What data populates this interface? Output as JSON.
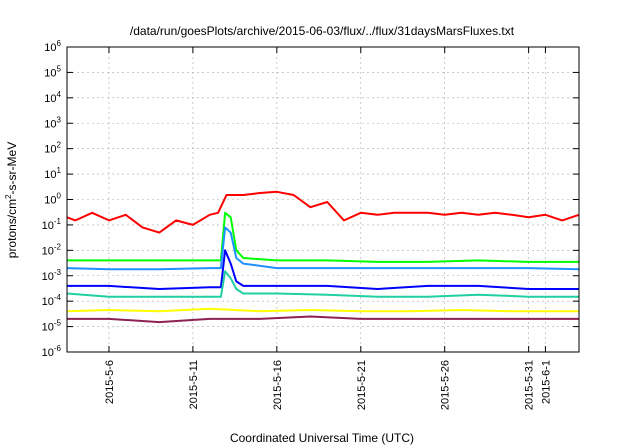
{
  "chart_data": {
    "type": "line",
    "title": "/data/run/goesPlots/archive/2015-06-03/flux/../flux/31daysMarsFluxes.txt",
    "xlabel": "Coordinated Universal Time (UTC)",
    "ylabel_parts": [
      "protons/cm",
      "2",
      "-s-sr-MeV"
    ],
    "y_scale": "log",
    "ylim": [
      1e-06,
      1000000.0
    ],
    "xlim": [
      "2015-05-03T12:00",
      "2015-06-03T00:00"
    ],
    "y_ticks": [
      {
        "base": "10",
        "exp": "-6",
        "value": 1e-06
      },
      {
        "base": "10",
        "exp": "-5",
        "value": 1e-05
      },
      {
        "base": "10",
        "exp": "-4",
        "value": 0.0001
      },
      {
        "base": "10",
        "exp": "-3",
        "value": 0.001
      },
      {
        "base": "10",
        "exp": "-2",
        "value": 0.01
      },
      {
        "base": "10",
        "exp": "-1",
        "value": 0.1
      },
      {
        "base": "10",
        "exp": "0",
        "value": 1
      },
      {
        "base": "10",
        "exp": "1",
        "value": 10
      },
      {
        "base": "10",
        "exp": "2",
        "value": 100
      },
      {
        "base": "10",
        "exp": "3",
        "value": 1000
      },
      {
        "base": "10",
        "exp": "4",
        "value": 10000
      },
      {
        "base": "10",
        "exp": "5",
        "value": 100000
      },
      {
        "base": "10",
        "exp": "6",
        "value": 1000000
      }
    ],
    "x_ticks": [
      {
        "label": "2015-5-6",
        "date": "2015-05-06"
      },
      {
        "label": "2015-5-11",
        "date": "2015-05-11"
      },
      {
        "label": "2015-5-16",
        "date": "2015-05-16"
      },
      {
        "label": "2015-5-21",
        "date": "2015-05-21"
      },
      {
        "label": "2015-5-26",
        "date": "2015-05-26"
      },
      {
        "label": "2015-5-31",
        "date": "2015-05-31"
      },
      {
        "label": "2015-6-1",
        "date": "2015-06-01"
      }
    ],
    "grid": true,
    "legend": "none",
    "series": [
      {
        "color": "#ff0000",
        "x": [
          "2015-05-03T12:00",
          "2015-05-04T00:00",
          "2015-05-05T00:00",
          "2015-05-06T00:00",
          "2015-05-07T00:00",
          "2015-05-08T00:00",
          "2015-05-09T00:00",
          "2015-05-10T00:00",
          "2015-05-11T00:00",
          "2015-05-12T00:00",
          "2015-05-12T12:00",
          "2015-05-13T00:00",
          "2015-05-14T00:00",
          "2015-05-15T00:00",
          "2015-05-16T00:00",
          "2015-05-17T00:00",
          "2015-05-18T00:00",
          "2015-05-19T00:00",
          "2015-05-20T00:00",
          "2015-05-21T00:00",
          "2015-05-22T00:00",
          "2015-05-23T00:00",
          "2015-05-24T00:00",
          "2015-05-25T00:00",
          "2015-05-26T00:00",
          "2015-05-27T00:00",
          "2015-05-28T00:00",
          "2015-05-29T00:00",
          "2015-05-30T00:00",
          "2015-05-31T00:00",
          "2015-06-01T00:00",
          "2015-06-02T00:00",
          "2015-06-03T00:00"
        ],
        "y": [
          0.2,
          0.15,
          0.3,
          0.15,
          0.25,
          0.08,
          0.05,
          0.15,
          0.1,
          0.25,
          0.3,
          1.5,
          1.5,
          1.8,
          2.0,
          1.5,
          0.5,
          0.8,
          0.15,
          0.3,
          0.25,
          0.3,
          0.3,
          0.3,
          0.25,
          0.3,
          0.25,
          0.3,
          0.25,
          0.2,
          0.25,
          0.15,
          0.25
        ]
      },
      {
        "color": "#00ff00",
        "x": [
          "2015-05-03T12:00",
          "2015-05-06T00:00",
          "2015-05-09T00:00",
          "2015-05-12T00:00",
          "2015-05-12T16:00",
          "2015-05-12T22:00",
          "2015-05-13T06:00",
          "2015-05-13T14:00",
          "2015-05-14T00:00",
          "2015-05-16T00:00",
          "2015-05-19T00:00",
          "2015-05-22T00:00",
          "2015-05-25T00:00",
          "2015-05-28T00:00",
          "2015-05-31T00:00",
          "2015-06-03T00:00"
        ],
        "y": [
          0.004,
          0.004,
          0.004,
          0.004,
          0.004,
          0.3,
          0.2,
          0.01,
          0.005,
          0.004,
          0.004,
          0.0035,
          0.0035,
          0.004,
          0.0035,
          0.0035
        ]
      },
      {
        "color": "#1e90ff",
        "x": [
          "2015-05-03T12:00",
          "2015-05-06T00:00",
          "2015-05-09T00:00",
          "2015-05-12T00:00",
          "2015-05-12T16:00",
          "2015-05-12T22:00",
          "2015-05-13T06:00",
          "2015-05-13T14:00",
          "2015-05-14T00:00",
          "2015-05-16T00:00",
          "2015-05-19T00:00",
          "2015-05-22T00:00",
          "2015-05-25T00:00",
          "2015-05-28T00:00",
          "2015-05-31T00:00",
          "2015-06-03T00:00"
        ],
        "y": [
          0.002,
          0.0018,
          0.0018,
          0.002,
          0.002,
          0.08,
          0.05,
          0.005,
          0.003,
          0.002,
          0.002,
          0.002,
          0.002,
          0.002,
          0.002,
          0.0018
        ]
      },
      {
        "color": "#0000ff",
        "x": [
          "2015-05-03T12:00",
          "2015-05-06T00:00",
          "2015-05-09T00:00",
          "2015-05-12T00:00",
          "2015-05-12T16:00",
          "2015-05-12T22:00",
          "2015-05-13T06:00",
          "2015-05-13T14:00",
          "2015-05-14T00:00",
          "2015-05-16T00:00",
          "2015-05-19T00:00",
          "2015-05-22T00:00",
          "2015-05-25T00:00",
          "2015-05-28T00:00",
          "2015-05-31T00:00",
          "2015-06-03T00:00"
        ],
        "y": [
          0.0004,
          0.0004,
          0.0003,
          0.00035,
          0.00035,
          0.01,
          0.003,
          0.0006,
          0.0004,
          0.0004,
          0.0004,
          0.0003,
          0.0004,
          0.0004,
          0.0003,
          0.0003
        ]
      },
      {
        "color": "#20d0a0",
        "x": [
          "2015-05-03T12:00",
          "2015-05-06T00:00",
          "2015-05-09T00:00",
          "2015-05-12T00:00",
          "2015-05-12T16:00",
          "2015-05-12T22:00",
          "2015-05-13T06:00",
          "2015-05-13T14:00",
          "2015-05-14T00:00",
          "2015-05-16T00:00",
          "2015-05-19T00:00",
          "2015-05-22T00:00",
          "2015-05-25T00:00",
          "2015-05-28T00:00",
          "2015-05-31T00:00",
          "2015-06-03T00:00"
        ],
        "y": [
          0.0002,
          0.00015,
          0.00015,
          0.00015,
          0.00015,
          0.0015,
          0.0008,
          0.0003,
          0.0002,
          0.0002,
          0.00018,
          0.00015,
          0.00015,
          0.00018,
          0.00015,
          0.00015
        ]
      },
      {
        "color": "#ffff00",
        "x": [
          "2015-05-03T12:00",
          "2015-05-06T00:00",
          "2015-05-09T00:00",
          "2015-05-12T00:00",
          "2015-05-15T00:00",
          "2015-05-18T00:00",
          "2015-05-21T00:00",
          "2015-05-24T00:00",
          "2015-05-27T00:00",
          "2015-05-30T00:00",
          "2015-06-03T00:00"
        ],
        "y": [
          4e-05,
          4.5e-05,
          4e-05,
          5e-05,
          4e-05,
          4.5e-05,
          4e-05,
          4e-05,
          4.5e-05,
          4e-05,
          4e-05
        ]
      },
      {
        "color": "#8b2252",
        "x": [
          "2015-05-03T12:00",
          "2015-05-06T00:00",
          "2015-05-09T00:00",
          "2015-05-12T00:00",
          "2015-05-15T00:00",
          "2015-05-18T00:00",
          "2015-05-21T00:00",
          "2015-05-24T00:00",
          "2015-05-27T00:00",
          "2015-05-30T00:00",
          "2015-06-03T00:00"
        ],
        "y": [
          2e-05,
          2e-05,
          1.5e-05,
          2e-05,
          2e-05,
          2.5e-05,
          2e-05,
          2e-05,
          2e-05,
          2e-05,
          2e-05
        ]
      }
    ]
  }
}
